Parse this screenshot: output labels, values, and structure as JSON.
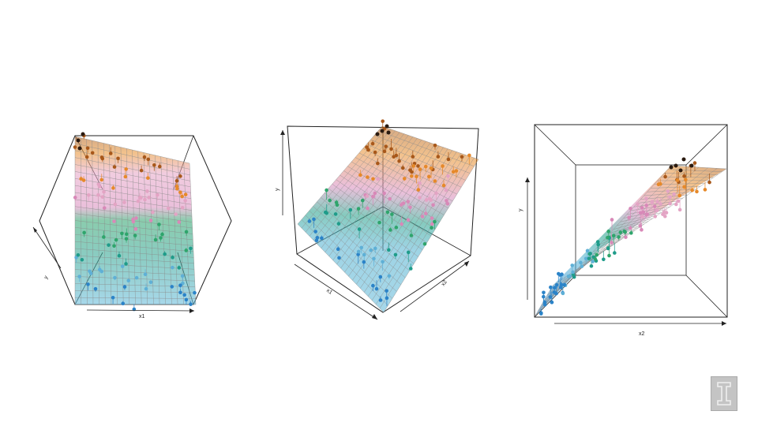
{
  "colors": {
    "gradient": [
      "#2b83c8",
      "#5fb0d6",
      "#1f9c8a",
      "#2fa56c",
      "#d889b8",
      "#e3a4c4",
      "#e6892a",
      "#a8581a"
    ],
    "point_low": "#1f6fb0",
    "point_high": "#2a1a10",
    "grid_line": "#8a8a8a",
    "box_line": "#222222"
  },
  "logo_icon": "university-logo-icon",
  "chart_data": [
    {
      "type": "scatter",
      "subtype": "3d-regression-plane",
      "view": "looking down the x2 axis",
      "xlabel": "x1",
      "ylabel": "y",
      "grid": true
    },
    {
      "type": "scatter",
      "subtype": "3d-regression-plane",
      "view": "oblique",
      "xlabel": "x1",
      "zlabel": "x2",
      "ylabel": "y",
      "grid": true
    },
    {
      "type": "scatter",
      "subtype": "3d-regression-plane",
      "view": "looking down the x1 axis",
      "xlabel": "x2",
      "ylabel": "y",
      "grid": true
    }
  ]
}
